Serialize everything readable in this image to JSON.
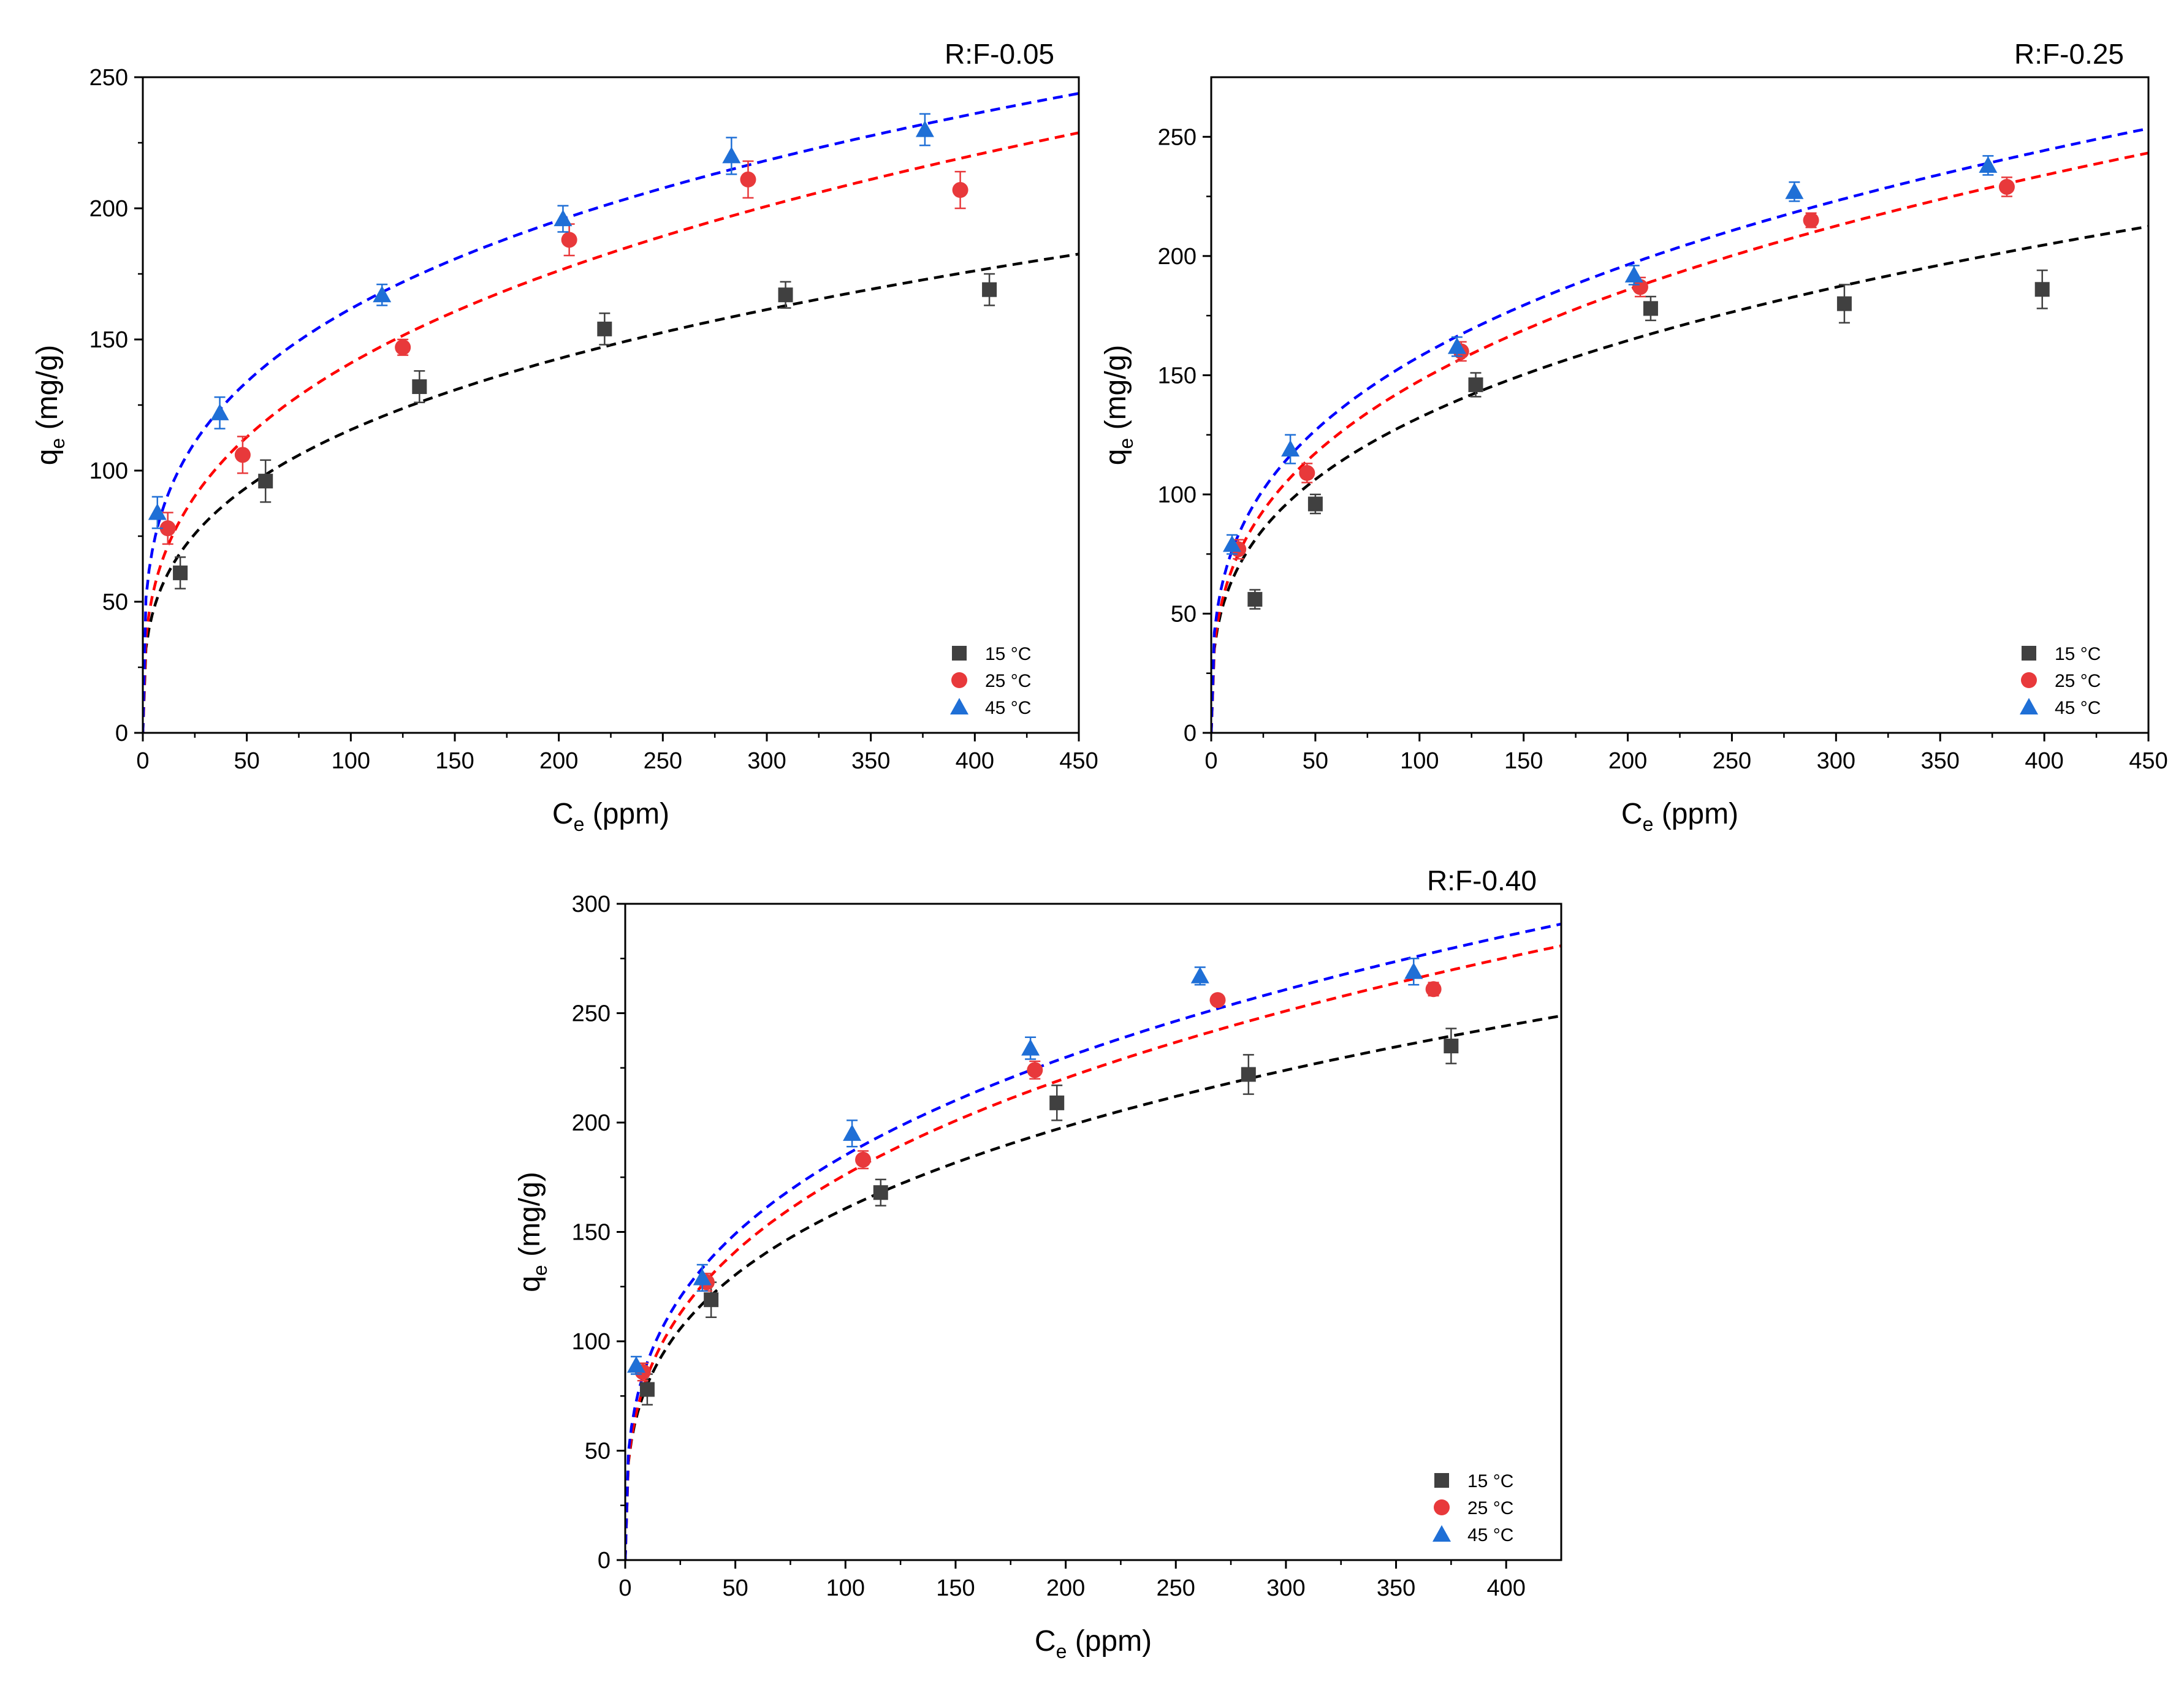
{
  "figure": {
    "legend_labels": [
      "15 °C",
      "25 °C",
      "45 °C"
    ],
    "series_colors": [
      "#404040",
      "#e8393b",
      "#1f6fd6"
    ],
    "fit_colors": [
      "#000000",
      "#ff0000",
      "#0000ff"
    ]
  },
  "chart_data": [
    {
      "type": "scatter",
      "title": "R:F-0.05",
      "xlabel_main": "C",
      "xlabel_sub": "e",
      "xlabel_rest": " (ppm)",
      "ylabel_main": "q",
      "ylabel_sub": "e",
      "ylabel_rest": " (mg/g)",
      "xlim": [
        0,
        450
      ],
      "ylim": [
        0,
        250
      ],
      "xticks": [
        0,
        50,
        100,
        150,
        200,
        250,
        300,
        350,
        400,
        450
      ],
      "yticks": [
        0,
        50,
        100,
        150,
        200,
        250
      ],
      "legend_position": "bottom-right",
      "series": [
        {
          "name": "15 °C",
          "marker": "square",
          "x": [
            18,
            59,
            133,
            222,
            309,
            407
          ],
          "y": [
            61,
            96,
            132,
            154,
            167,
            169
          ],
          "err": [
            6,
            8,
            6,
            6,
            5,
            6
          ],
          "fit": {
            "K": 28.5,
            "n": 0.304
          }
        },
        {
          "name": "25 °C",
          "marker": "circle",
          "x": [
            12,
            48,
            125,
            205,
            291,
            393
          ],
          "y": [
            78,
            106,
            147,
            188,
            211,
            207
          ],
          "err": [
            6,
            7,
            3,
            6,
            7,
            7
          ],
          "fit": {
            "K": 32.0,
            "n": 0.322
          }
        },
        {
          "name": "45 °C",
          "marker": "triangle",
          "x": [
            7,
            37,
            115,
            202,
            283,
            376
          ],
          "y": [
            84,
            122,
            167,
            196,
            220,
            230
          ],
          "err": [
            6,
            6,
            4,
            5,
            7,
            6
          ],
          "fit": {
            "K": 46.0,
            "n": 0.273
          }
        }
      ]
    },
    {
      "type": "scatter",
      "title": "R:F-0.25",
      "xlabel_main": "C",
      "xlabel_sub": "e",
      "xlabel_rest": " (ppm)",
      "ylabel_main": "q",
      "ylabel_sub": "e",
      "ylabel_rest": " (mg/g)",
      "xlim": [
        0,
        450
      ],
      "ylim": [
        0,
        275
      ],
      "xticks": [
        0,
        50,
        100,
        150,
        200,
        250,
        300,
        350,
        400,
        450
      ],
      "yticks": [
        0,
        50,
        100,
        150,
        200,
        250
      ],
      "legend_position": "bottom-right",
      "series": [
        {
          "name": "15 °C",
          "marker": "square",
          "x": [
            21,
            50,
            127,
            211,
            304,
            399
          ],
          "y": [
            56,
            96,
            146,
            178,
            180,
            186
          ],
          "err": [
            4,
            4,
            5,
            5,
            8,
            8
          ],
          "fit": {
            "K": 31.0,
            "n": 0.315
          }
        },
        {
          "name": "25 °C",
          "marker": "circle",
          "x": [
            13,
            46,
            120,
            206,
            288,
            382
          ],
          "y": [
            77,
            109,
            160,
            187,
            215,
            229
          ],
          "err": [
            4,
            4,
            4,
            4,
            3,
            4
          ],
          "fit": {
            "K": 32.0,
            "n": 0.332
          }
        },
        {
          "name": "45 °C",
          "marker": "triangle",
          "x": [
            10,
            38,
            118,
            203,
            280,
            373
          ],
          "y": [
            79,
            119,
            162,
            192,
            227,
            238
          ],
          "err": [
            4,
            6,
            4,
            4,
            4,
            4
          ],
          "fit": {
            "K": 37.0,
            "n": 0.315
          }
        }
      ]
    },
    {
      "type": "scatter",
      "title": "R:F-0.40",
      "xlabel_main": "C",
      "xlabel_sub": "e",
      "xlabel_rest": " (ppm)",
      "ylabel_main": "q",
      "ylabel_sub": "e",
      "ylabel_rest": " (mg/g)",
      "xlim": [
        0,
        425
      ],
      "ylim": [
        0,
        300
      ],
      "xticks": [
        0,
        50,
        100,
        150,
        200,
        250,
        300,
        350,
        400
      ],
      "yticks": [
        0,
        50,
        100,
        150,
        200,
        250,
        300
      ],
      "legend_position": "bottom-right",
      "series": [
        {
          "name": "15 °C",
          "marker": "square",
          "x": [
            10,
            39,
            116,
            196,
            283,
            375
          ],
          "y": [
            78,
            119,
            168,
            209,
            222,
            235
          ],
          "err": [
            7,
            8,
            6,
            8,
            9,
            8
          ],
          "fit": {
            "K": 40.0,
            "n": 0.302
          }
        },
        {
          "name": "25 °C",
          "marker": "circle",
          "x": [
            8,
            37,
            108,
            186,
            269,
            367
          ],
          "y": [
            86,
            127,
            183,
            224,
            256,
            261
          ],
          "err": [
            4,
            4,
            4,
            4,
            2,
            3
          ],
          "fit": {
            "K": 40.0,
            "n": 0.322
          }
        },
        {
          "name": "45 °C",
          "marker": "triangle",
          "x": [
            5,
            35,
            103,
            184,
            261,
            358
          ],
          "y": [
            89,
            129,
            195,
            234,
            267,
            269
          ],
          "err": [
            4,
            6,
            6,
            5,
            4,
            6
          ],
          "fit": {
            "K": 44.0,
            "n": 0.312
          }
        }
      ]
    }
  ]
}
